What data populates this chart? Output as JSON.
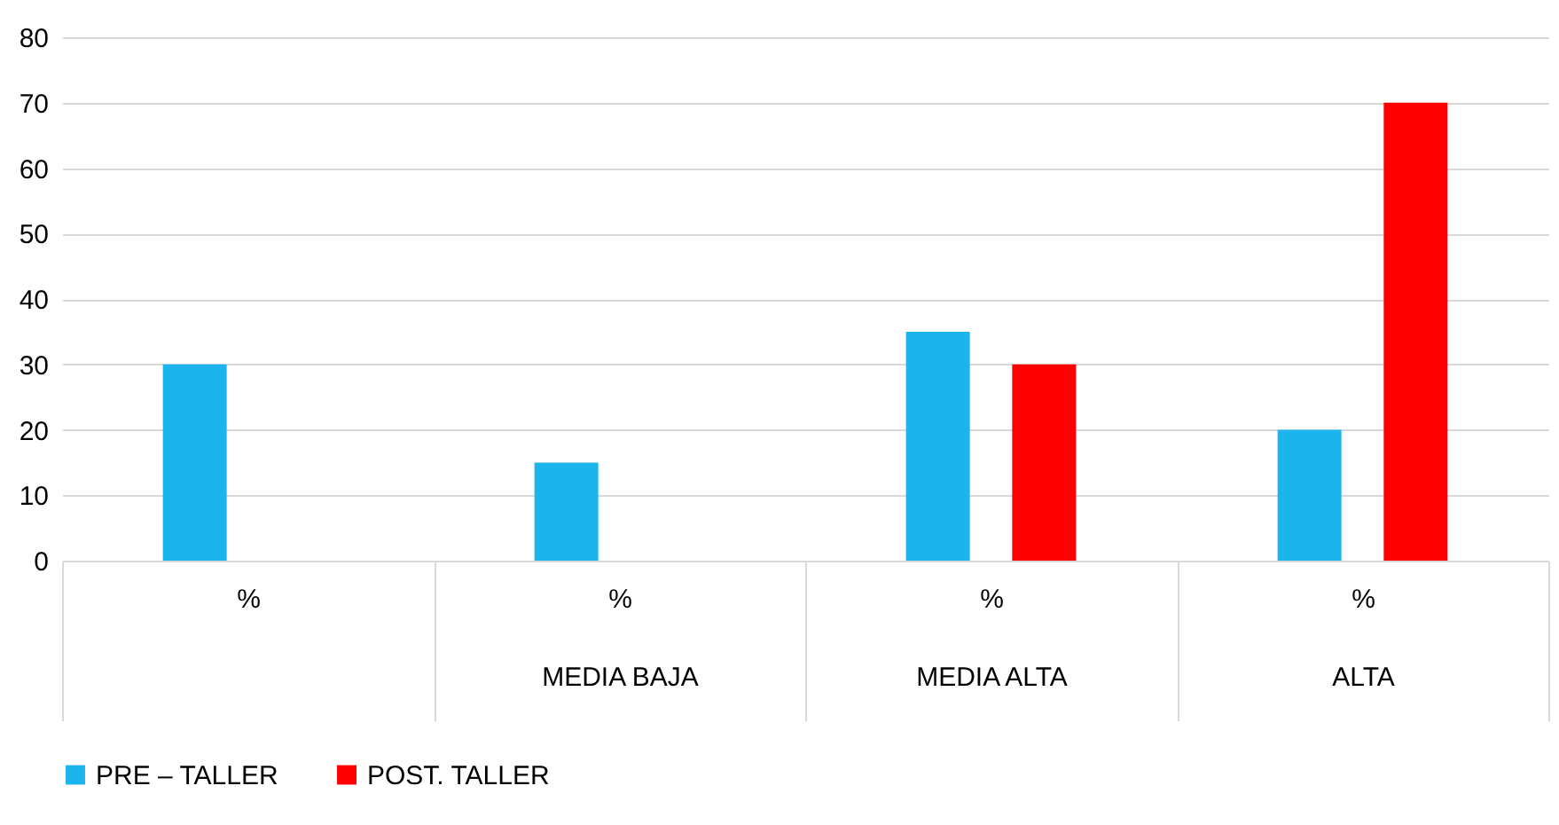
{
  "chart_data": {
    "type": "bar",
    "categories": [
      "%",
      "%\nMEDIA BAJA",
      "%\nMEDIA ALTA",
      "%\nALTA"
    ],
    "series": [
      {
        "name": "PRE – TALLER",
        "color": "#1cb4ec",
        "values": [
          30,
          15,
          35,
          20
        ]
      },
      {
        "name": "POST. TALLER",
        "color": "#ff0000",
        "values": [
          null,
          null,
          30,
          70
        ]
      }
    ],
    "ylim": [
      0,
      80
    ],
    "yticks": [
      0,
      10,
      20,
      30,
      40,
      50,
      60,
      70,
      80
    ],
    "grid": "y",
    "legend": "bottom"
  }
}
